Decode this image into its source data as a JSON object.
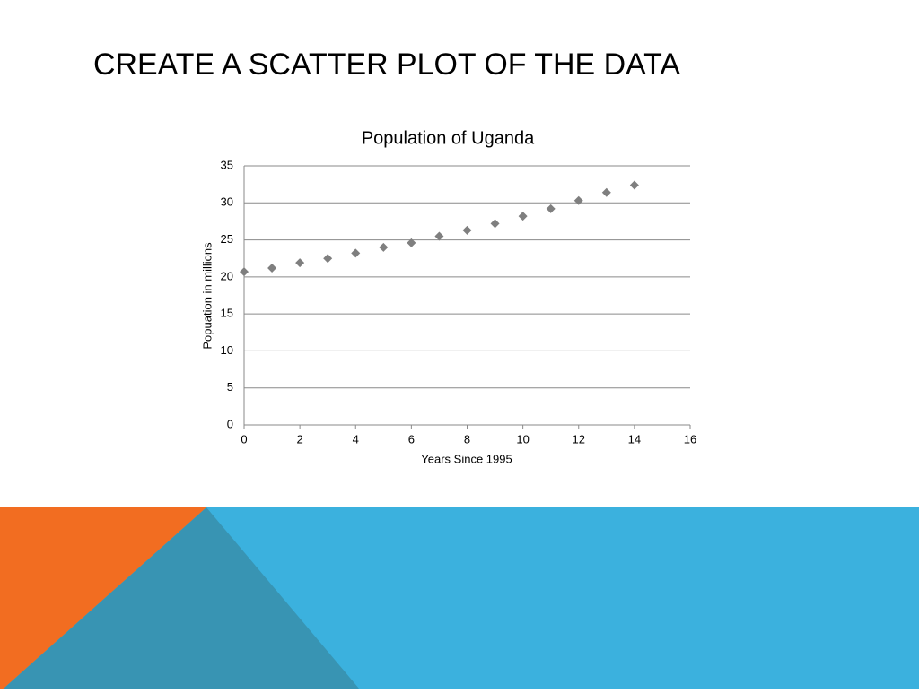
{
  "slide": {
    "title": "CREATE A SCATTER PLOT OF THE DATA"
  },
  "chart_data": {
    "type": "scatter",
    "title": "Population of Uganda",
    "x_label": "Years Since 1995",
    "y_label": "Popuation in millions",
    "x": [
      0,
      1,
      2,
      3,
      4,
      5,
      6,
      7,
      8,
      9,
      10,
      11,
      12,
      13,
      14
    ],
    "values": [
      20.7,
      21.2,
      21.9,
      22.5,
      23.2,
      24.0,
      24.6,
      25.5,
      26.3,
      27.2,
      28.2,
      29.2,
      30.3,
      31.4,
      32.4
    ],
    "color": "#7f7f7f",
    "xlim": [
      0,
      16
    ],
    "xticks": [
      0,
      2,
      4,
      6,
      8,
      10,
      12,
      14,
      16
    ],
    "ylim": [
      0,
      35
    ],
    "yticks": [
      0,
      5,
      10,
      15,
      20,
      25,
      30,
      35
    ],
    "grid": true
  }
}
